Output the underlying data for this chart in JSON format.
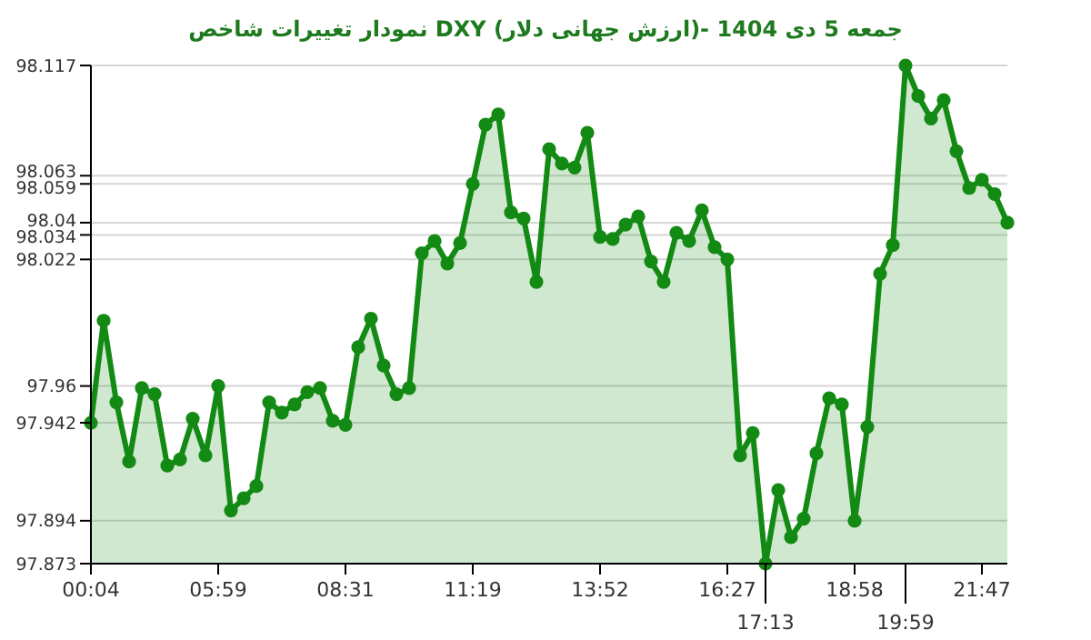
{
  "chart_data": {
    "type": "area",
    "title": "نمودار تغییرات شاخص DXY (ارزش جهانی دلار)- جمعه  5 دی 1404",
    "categories": [
      "00:04",
      null,
      null,
      null,
      null,
      null,
      null,
      null,
      null,
      null,
      "05:59",
      null,
      null,
      null,
      null,
      null,
      null,
      null,
      null,
      null,
      "08:31",
      null,
      null,
      null,
      null,
      null,
      null,
      null,
      null,
      null,
      "11:19",
      null,
      null,
      null,
      null,
      null,
      null,
      null,
      null,
      null,
      "13:52",
      null,
      null,
      null,
      null,
      null,
      null,
      null,
      null,
      null,
      "16:27",
      null,
      null,
      "17:13",
      null,
      null,
      null,
      null,
      null,
      null,
      "18:58",
      null,
      null,
      null,
      "19:59",
      null,
      null,
      null,
      null,
      null,
      "21:47",
      null,
      null
    ],
    "series": [
      {
        "color": "#138a13",
        "values": [
          97.942,
          97.992,
          97.952,
          97.923,
          97.959,
          97.956,
          97.921,
          97.924,
          97.944,
          97.926,
          97.96,
          97.899,
          97.905,
          97.911,
          97.952,
          97.947,
          97.951,
          97.957,
          97.959,
          97.943,
          97.941,
          97.979,
          97.993,
          97.97,
          97.956,
          97.959,
          98.025,
          98.031,
          98.02,
          98.03,
          98.059,
          98.088,
          98.093,
          98.045,
          98.042,
          98.011,
          98.076,
          98.069,
          98.067,
          98.084,
          98.033,
          98.032,
          98.039,
          98.043,
          98.021,
          98.011,
          98.035,
          98.031,
          98.046,
          98.028,
          98.022,
          97.926,
          97.937,
          97.873,
          97.909,
          97.886,
          97.895,
          97.927,
          97.954,
          97.951,
          97.894,
          97.94,
          98.015,
          98.029,
          98.117,
          98.102,
          98.091,
          98.1,
          98.075,
          98.057,
          98.061,
          98.054,
          98.04
        ]
      }
    ],
    "ylim": [
      97.873,
      98.117
    ],
    "yticks": [
      97.873,
      97.894,
      97.942,
      97.96,
      98.022,
      98.034,
      98.04,
      98.059,
      98.063,
      98.117
    ],
    "grid": "y",
    "marker": "circle",
    "line_style": "solid"
  }
}
